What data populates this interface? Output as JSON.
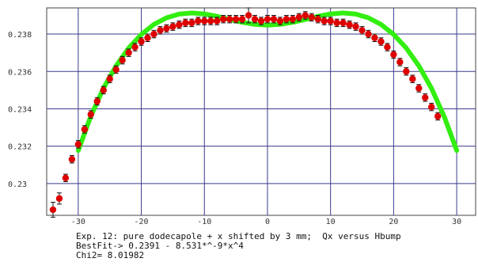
{
  "chart_data": {
    "type": "scatter",
    "title": "",
    "xlabel": "",
    "ylabel": "",
    "xlim": [
      -35,
      33
    ],
    "ylim": [
      0.2283,
      0.2394
    ],
    "x_ticks": [
      -30,
      -20,
      -10,
      0,
      10,
      20,
      30
    ],
    "x_tick_labels": [
      "-30",
      "-20",
      "-10",
      "0",
      "10",
      "20",
      "30"
    ],
    "y_ticks": [
      0.23,
      0.232,
      0.234,
      0.236,
      0.238
    ],
    "y_tick_labels": [
      "0.23",
      "0.232",
      "0.234",
      "0.236",
      "0.238"
    ],
    "grid": true,
    "legend": "none",
    "series": [
      {
        "kind": "fit-curve",
        "color": "#33ee11",
        "x": [
          -30,
          -28,
          -26,
          -24,
          -22,
          -20,
          -18,
          -16,
          -14,
          -12,
          -10,
          -8,
          -6,
          -4,
          -2,
          0,
          2,
          4,
          6,
          8,
          10,
          12,
          14,
          16,
          18,
          20,
          22,
          24,
          26,
          28,
          30
        ],
        "y": [
          0.23177,
          0.23361,
          0.2351,
          0.2363,
          0.23725,
          0.23798,
          0.23852,
          0.23887,
          0.23907,
          0.23913,
          0.23908,
          0.23895,
          0.23878,
          0.23863,
          0.23852,
          0.23848,
          0.23852,
          0.23863,
          0.23878,
          0.23895,
          0.23908,
          0.23913,
          0.23907,
          0.23887,
          0.23852,
          0.23798,
          0.23725,
          0.2363,
          0.2351,
          0.23361,
          0.23177
        ]
      },
      {
        "kind": "measured",
        "color": "#dd0000",
        "errorbar_color": "#111111",
        "x": [
          -34,
          -33,
          -32,
          -31,
          -30,
          -29,
          -28,
          -27,
          -26,
          -25,
          -24,
          -23,
          -22,
          -21,
          -20,
          -19,
          -18,
          -17,
          -16,
          -15,
          -14,
          -13,
          -12,
          -11,
          -10,
          -9,
          -8,
          -7,
          -6,
          -5,
          -4,
          -3,
          -2,
          -1,
          0,
          1,
          2,
          3,
          4,
          5,
          6,
          7,
          8,
          9,
          10,
          11,
          12,
          13,
          14,
          15,
          16,
          17,
          18,
          19,
          20,
          21,
          22,
          23,
          24,
          25,
          26,
          27
        ],
        "y": [
          0.2286,
          0.2292,
          0.2303,
          0.2313,
          0.2321,
          0.2329,
          0.2337,
          0.2344,
          0.235,
          0.2356,
          0.2361,
          0.2366,
          0.237,
          0.2373,
          0.2376,
          0.2378,
          0.238,
          0.2382,
          0.2383,
          0.2384,
          0.2385,
          0.2386,
          0.2386,
          0.2387,
          0.2387,
          0.2387,
          0.2387,
          0.2388,
          0.2388,
          0.2388,
          0.2388,
          0.239,
          0.2388,
          0.2387,
          0.2388,
          0.2388,
          0.2387,
          0.2388,
          0.2388,
          0.2389,
          0.239,
          0.2389,
          0.2388,
          0.2387,
          0.2387,
          0.2386,
          0.2386,
          0.2385,
          0.2384,
          0.2382,
          0.238,
          0.2378,
          0.2376,
          0.2373,
          0.2369,
          0.2365,
          0.236,
          0.2356,
          0.2351,
          0.2346,
          0.2341,
          0.2336
        ],
        "err": [
          0.0004,
          0.0003,
          0.0002,
          0.0002,
          0.0002,
          0.0002,
          0.0002,
          0.0002,
          0.0002,
          0.0002,
          0.0002,
          0.0002,
          0.0002,
          0.0002,
          0.0002,
          0.0002,
          0.0002,
          0.0002,
          0.0002,
          0.0002,
          0.0002,
          0.0002,
          0.0002,
          0.0002,
          0.0002,
          0.0002,
          0.0002,
          0.0002,
          0.0002,
          0.0002,
          0.0002,
          0.0004,
          0.0002,
          0.0002,
          0.0002,
          0.0002,
          0.0002,
          0.0002,
          0.0002,
          0.0002,
          0.0002,
          0.0002,
          0.0002,
          0.0002,
          0.0002,
          0.0002,
          0.0002,
          0.0002,
          0.0002,
          0.0002,
          0.0002,
          0.0002,
          0.0002,
          0.0002,
          0.0002,
          0.0002,
          0.0002,
          0.0002,
          0.0002,
          0.0002,
          0.0002,
          0.0002
        ]
      }
    ],
    "annotations": [
      "Exp. 12: pure dodecapole + x shifted by 3 mm;  Qx versus Hbump",
      "BestFit-> 0.2391 - 8.531*^-9*x^4",
      "Chi2= 8.01982"
    ]
  }
}
